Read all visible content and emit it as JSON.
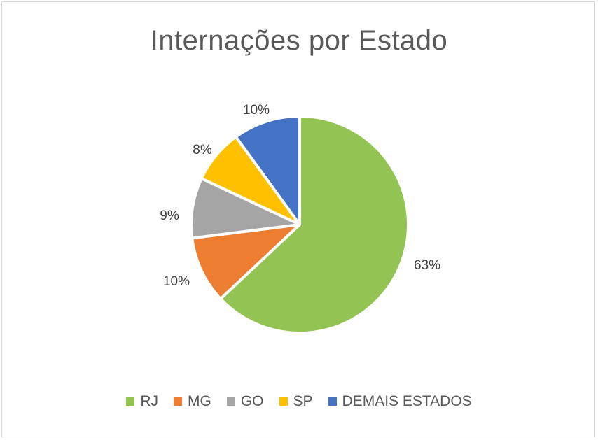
{
  "chart_data": {
    "type": "pie",
    "title": "Internações por Estado",
    "slices": [
      {
        "label": "RJ",
        "value": 63,
        "display": "63%",
        "color": "#92c353"
      },
      {
        "label": "MG",
        "value": 10,
        "display": "10%",
        "color": "#ed7d31"
      },
      {
        "label": "GO",
        "value": 9,
        "display": "9%",
        "color": "#a5a5a5"
      },
      {
        "label": "SP",
        "value": 8,
        "display": "8%",
        "color": "#ffc000"
      },
      {
        "label": "DEMAIS ESTADOS",
        "value": 10,
        "display": "10%",
        "color": "#4472c4"
      }
    ],
    "legend_position": "bottom"
  }
}
